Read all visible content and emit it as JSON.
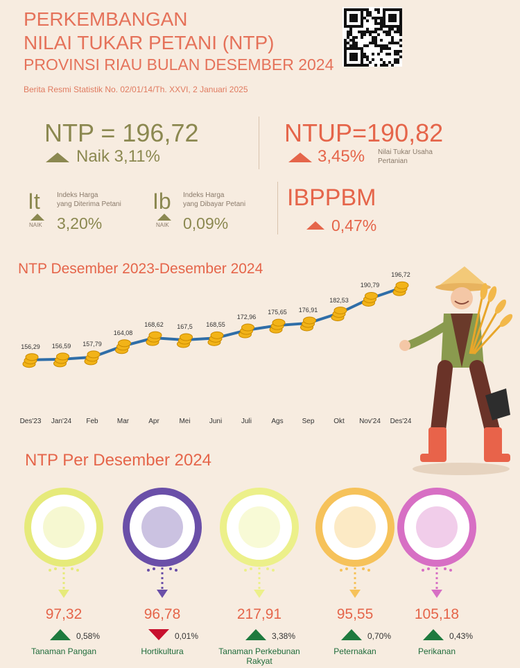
{
  "header": {
    "title_line1": "PERKEMBANGAN",
    "title_line2": "NILAI TUKAR PETANI (NTP)",
    "title_line3": "PROVINSI RIAU BULAN DESEMBER 2024",
    "reference": "Berita Resmi Statistik No. 02/01/14/Th. XXVI, 2 Januari 2025"
  },
  "ntp": {
    "value_text": "NTP = 196,72",
    "change_text": "Naik 3,11%"
  },
  "ntup": {
    "value_text": "NTUP=190,82",
    "change_text": "3,45%",
    "desc_line1": "Nilai Tukar Usaha",
    "desc_line2": "Pertanian"
  },
  "it": {
    "symbol": "It",
    "desc_line1": "Indeks Harga",
    "desc_line2": "yang Diterima Petani",
    "naik": "NAIK",
    "value": "3,20%"
  },
  "ib": {
    "symbol": "Ib",
    "desc_line1": "Indeks Harga",
    "desc_line2": "yang Dibayar Petani",
    "naik": "NAIK",
    "value": "0,09%"
  },
  "ibppbm": {
    "label": "IBPPBM",
    "value": "0,47%"
  },
  "colors": {
    "accent": "#e5654a",
    "olive": "#8b8850",
    "line": "#2f6ea8",
    "coin": "#f2b318",
    "up": "#1e7a3e",
    "down": "#c8102e"
  },
  "chart_data": {
    "type": "line",
    "title": "NTP Desember 2023-Desember 2024",
    "categories": [
      "Des'23",
      "Jan'24",
      "Feb",
      "Mar",
      "Apr",
      "Mei",
      "Juni",
      "Juli",
      "Ags",
      "Sep",
      "Okt",
      "Nov'24",
      "Des'24"
    ],
    "values": [
      156.29,
      156.59,
      157.79,
      164.08,
      168.62,
      167.5,
      168.55,
      172.96,
      175.65,
      176.91,
      182.53,
      190.79,
      196.72
    ],
    "value_labels": [
      "156,29",
      "156,59",
      "157,79",
      "164,08",
      "168,62",
      "167,5",
      "168,55",
      "172,96",
      "175,65",
      "176,91",
      "182,53",
      "190,79",
      "196,72"
    ]
  },
  "section2_title": "NTP Per Desember 2024",
  "subsectors": [
    {
      "name_line1": "Tanaman Pangan",
      "name_line2": "",
      "value": "97,32",
      "change": "0,58%",
      "direction": "up",
      "ring": "#e6ea7a",
      "icon": "corn-icon"
    },
    {
      "name_line1": "Hortikultura",
      "name_line2": "",
      "value": "96,78",
      "change": "0,01%",
      "direction": "down",
      "ring": "#6a4fa8",
      "icon": "vegetables-icon"
    },
    {
      "name_line1": "Tanaman Perkebunan",
      "name_line2": "Rakyat",
      "value": "217,91",
      "change": "3,38%",
      "direction": "up",
      "ring": "#ecf08a",
      "icon": "palm-fruit-icon"
    },
    {
      "name_line1": "Peternakan",
      "name_line2": "",
      "value": "95,55",
      "change": "0,70%",
      "direction": "up",
      "ring": "#f6c25a",
      "icon": "livestock-icon"
    },
    {
      "name_line1": "Perikanan",
      "name_line2": "",
      "value": "105,18",
      "change": "0,43%",
      "direction": "up",
      "ring": "#d76fc4",
      "icon": "fisherman-icon"
    }
  ]
}
